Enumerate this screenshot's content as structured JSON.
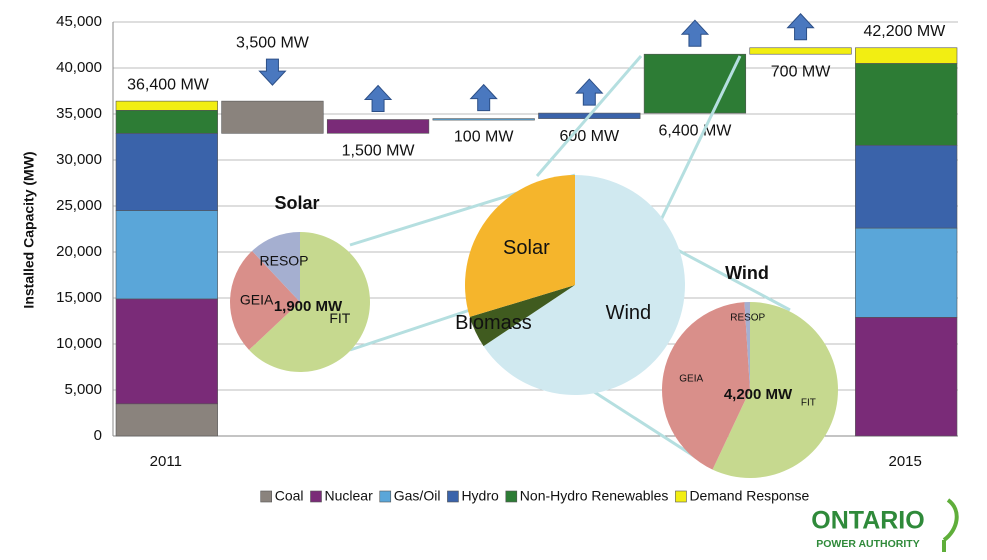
{
  "chart_data": [
    {
      "type": "waterfall",
      "y_label": "Installed Capacity (MW)",
      "categories": [
        "2011",
        null,
        null,
        null,
        null,
        null,
        null,
        "2015"
      ],
      "ylim": [
        0,
        45000
      ],
      "yticks": [
        0,
        {
          "value": 5000,
          "label": "5,000"
        },
        {
          "value": 10000,
          "label": "10,000"
        },
        {
          "value": 15000,
          "label": "15,000"
        },
        {
          "value": 20000,
          "label": "20,000"
        },
        {
          "value": 25000,
          "label": "25,000"
        },
        {
          "value": 30000,
          "label": "30,000"
        },
        {
          "value": 35000,
          "label": "35,000"
        },
        {
          "value": 40000,
          "label": "40,000"
        },
        {
          "value": 45000,
          "label": "45,000"
        }
      ],
      "grid": true,
      "series": [
        {
          "name": "Coal",
          "color": "#8a837d",
          "values": [
            3500,
            -3500,
            null,
            null,
            null,
            null,
            null,
            0
          ],
          "value_labels": [
            null,
            "3,500 MW",
            null,
            null,
            null,
            null,
            null,
            null
          ]
        },
        {
          "name": "Nuclear",
          "color": "#7a2b78",
          "values": [
            11400,
            null,
            1500,
            null,
            null,
            null,
            null,
            12900
          ],
          "value_labels": [
            null,
            null,
            "1,500 MW",
            null,
            null,
            null,
            null,
            null
          ]
        },
        {
          "name": "Gas/Oil",
          "color": "#5aa6d9",
          "values": [
            9600,
            null,
            null,
            100,
            null,
            null,
            null,
            9700
          ],
          "value_labels": [
            null,
            null,
            null,
            "100 MW",
            null,
            null,
            null,
            null
          ]
        },
        {
          "name": "Hydro",
          "color": "#3a63aa",
          "values": [
            8400,
            null,
            null,
            null,
            600,
            null,
            null,
            9000
          ],
          "value_labels": [
            null,
            null,
            null,
            null,
            "600 MW",
            null,
            null,
            null
          ]
        },
        {
          "name": "Non-Hydro Renewables",
          "color": "#2d7c35",
          "values": [
            2500,
            null,
            null,
            null,
            null,
            6400,
            null,
            8900
          ],
          "value_labels": [
            null,
            null,
            null,
            null,
            null,
            "6,400 MW",
            null,
            null
          ]
        },
        {
          "name": "Demand Response",
          "color": "#f2ee12",
          "values": [
            1000,
            null,
            null,
            null,
            null,
            null,
            700,
            1700
          ],
          "value_labels": [
            null,
            null,
            null,
            null,
            null,
            null,
            "700 MW",
            null
          ]
        }
      ],
      "totals": [
        {
          "value": 36400,
          "label": "36,400 MW"
        },
        {
          "value": 42200,
          "label": "42,200 MW"
        }
      ],
      "legend": "bottom"
    },
    {
      "type": "pie",
      "title": "Solar",
      "center_label": "1,900 MW",
      "categories": [
        "FIT",
        "GEIA",
        "RESOP"
      ],
      "values": [
        63,
        25,
        12
      ],
      "colors": [
        "#c6d98f",
        "#d98f8a",
        "#a5afd0"
      ]
    },
    {
      "type": "pie",
      "categories": [
        "Wind",
        "Biomass",
        "Solar"
      ],
      "values": [
        4200,
        300,
        1900
      ],
      "colors": [
        "#d0e9f0",
        "#405b1f",
        "#f5b52c"
      ]
    },
    {
      "type": "pie",
      "title": "Wind",
      "center_label": "4,200 MW",
      "categories": [
        "FIT",
        "GEIA",
        "RESOP"
      ],
      "values": [
        57,
        42,
        1
      ],
      "colors": [
        "#c6d98f",
        "#d98f8a",
        "#a5afd0"
      ]
    }
  ],
  "logo": {
    "name": "ONTARIO",
    "subtitle": "POWER AUTHORITY"
  }
}
